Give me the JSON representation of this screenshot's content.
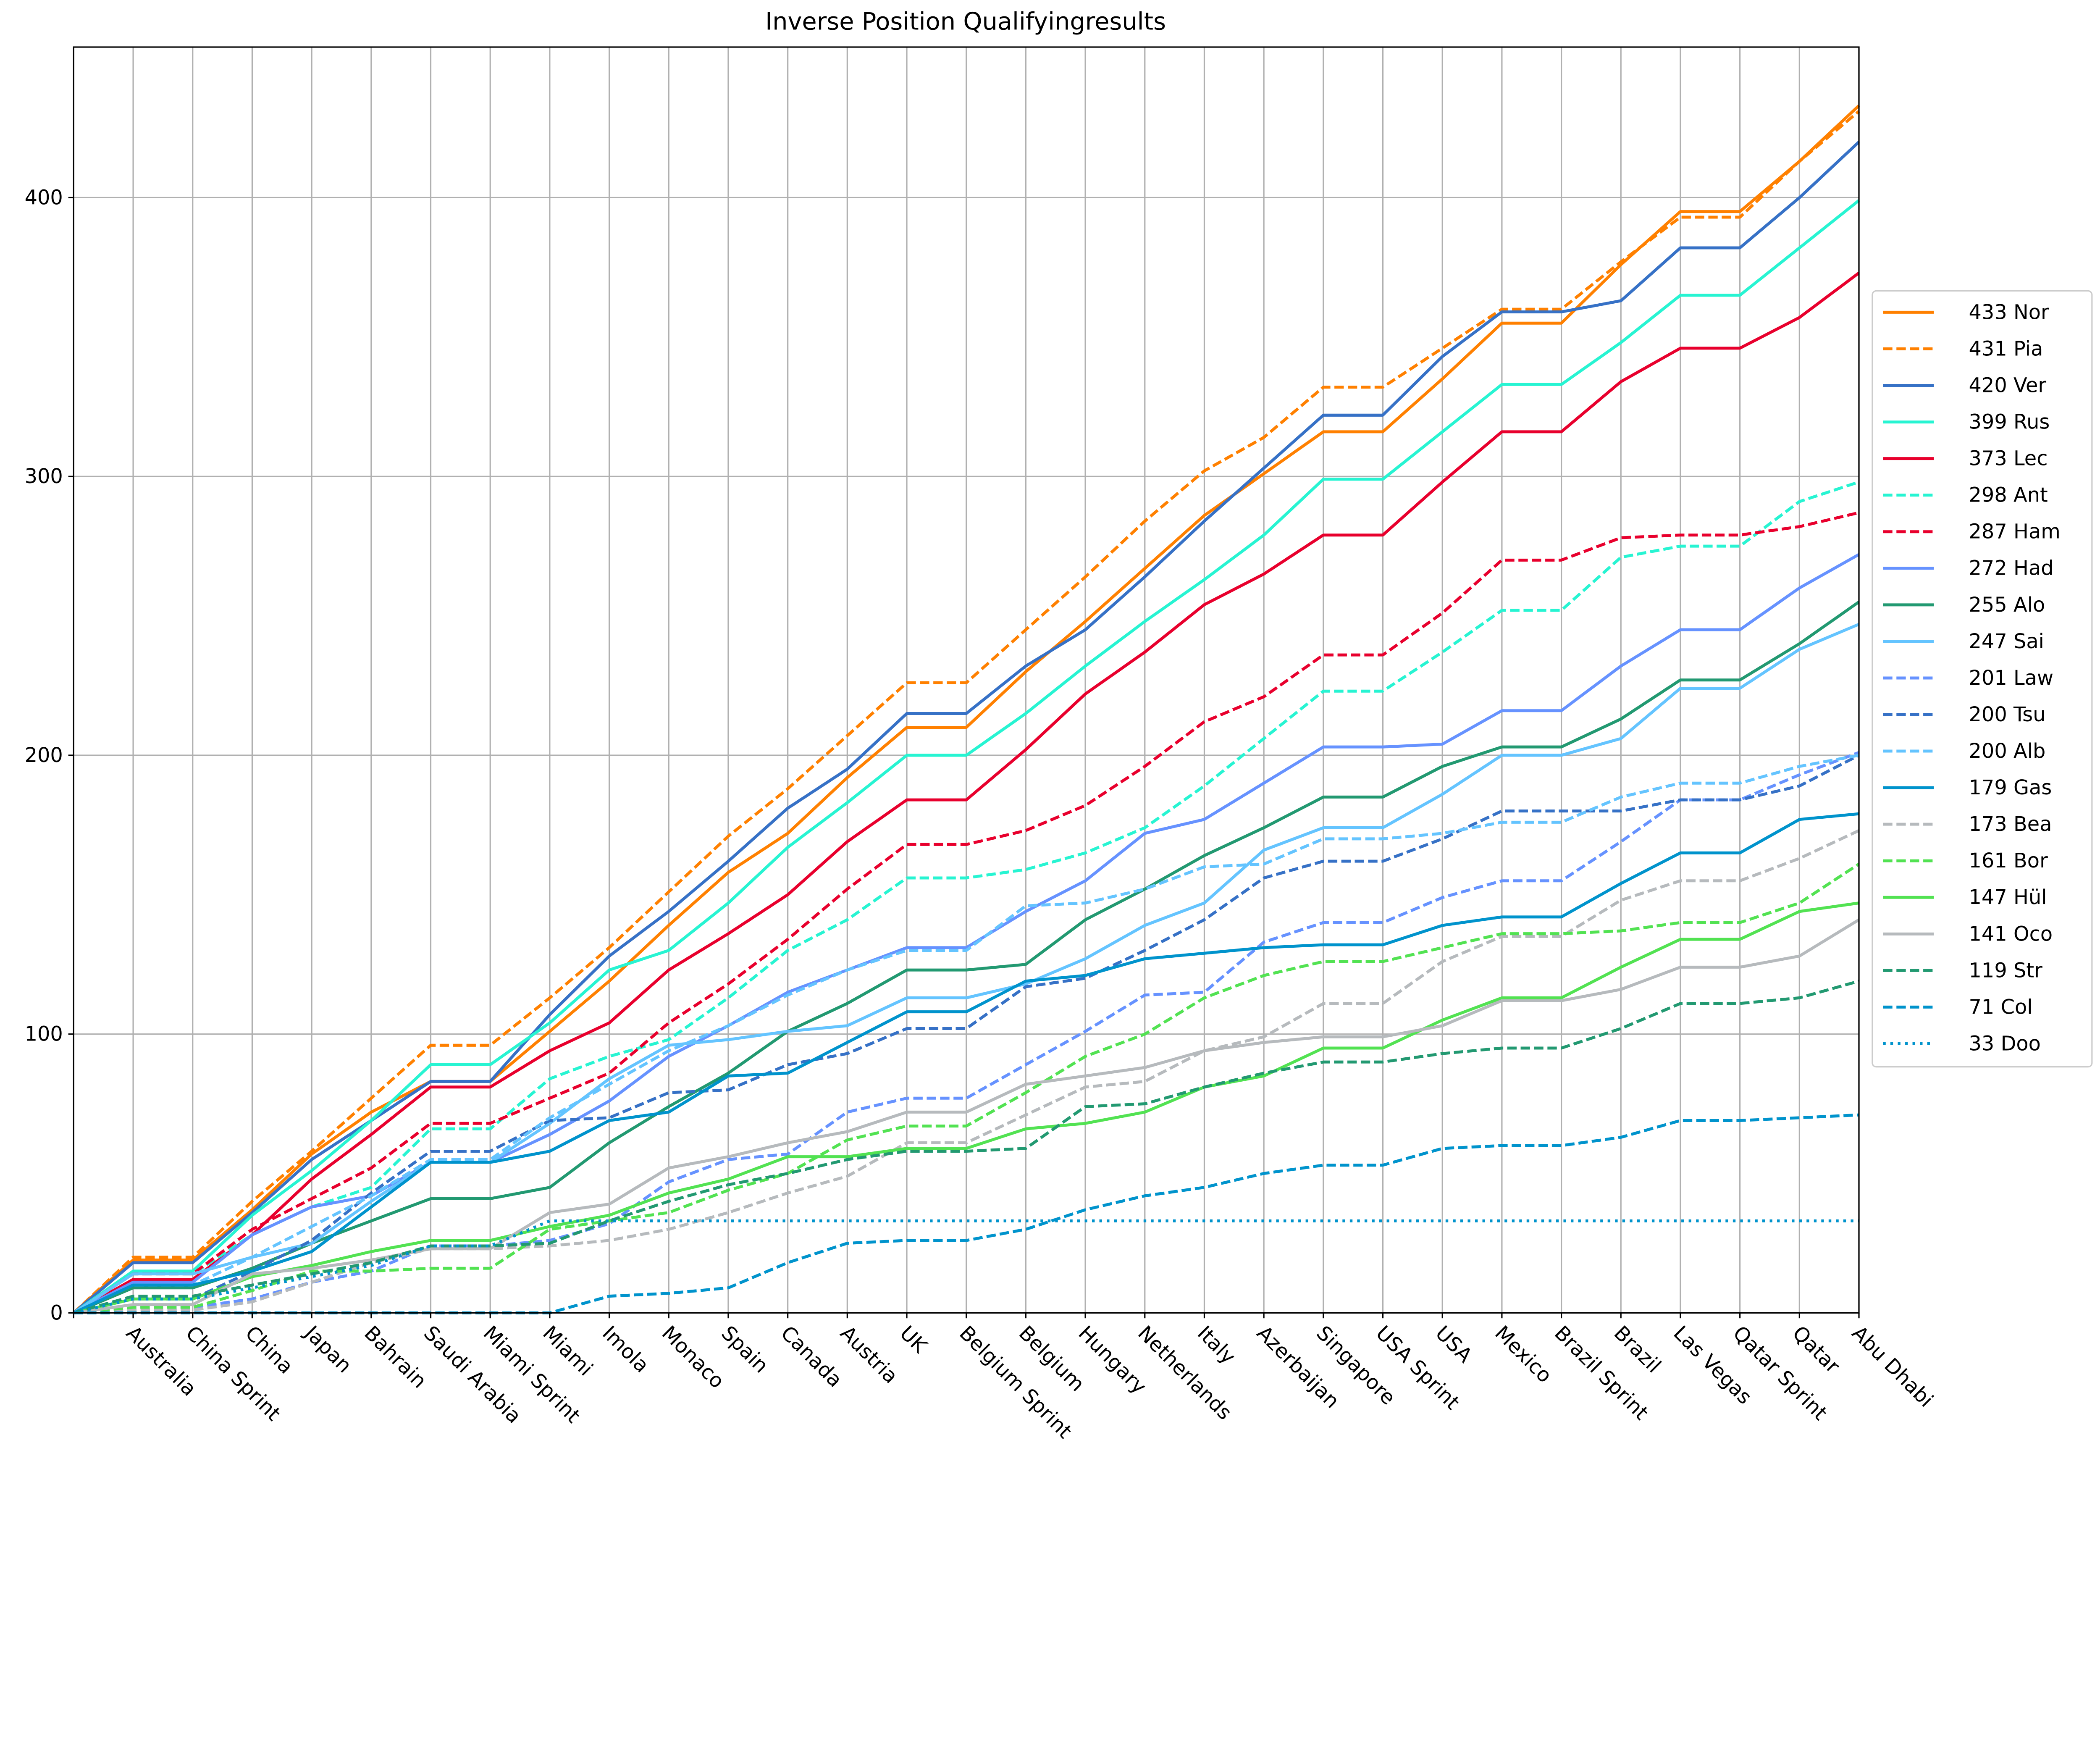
{
  "chart_data": {
    "type": "line",
    "title": "Inverse Position Qualifyingresults",
    "xlabel": "",
    "ylabel": "",
    "ylim": [
      0,
      454
    ],
    "yticks": [
      0,
      100,
      200,
      300,
      400
    ],
    "grid": true,
    "legend_position": "right",
    "categories": [
      "",
      "Australia",
      "China Sprint",
      "China",
      "Japan",
      "Bahrain",
      "Saudi Arabia",
      "Miami Sprint",
      "Miami",
      "Imola",
      "Monaco",
      "Spain",
      "Canada",
      "Austria",
      "UK",
      "Belgium Sprint",
      "Belgium",
      "Hungary",
      "Netherlands",
      "Italy",
      "Azerbaijan",
      "Singapore",
      "USA Sprint",
      "USA",
      "Mexico",
      "Brazil Sprint",
      "Brazil",
      "Las Vegas",
      "Qatar Sprint",
      "Qatar",
      "Abu Dhabi"
    ],
    "series": [
      {
        "name": "Nor",
        "label": "433 Nor",
        "color": "#ff8000",
        "style": "solid",
        "values": [
          0,
          19,
          19,
          37,
          57,
          72,
          83,
          83,
          101,
          119,
          139,
          158,
          172,
          192,
          210,
          210,
          230,
          248,
          267,
          286,
          301,
          316,
          316,
          335,
          355,
          355,
          376,
          395,
          395,
          413,
          433
        ]
      },
      {
        "name": "Pia",
        "label": "431 Pia",
        "color": "#ff8000",
        "style": "dashed",
        "values": [
          0,
          20,
          20,
          40,
          58,
          77,
          96,
          96,
          113,
          131,
          151,
          171,
          188,
          207,
          226,
          226,
          245,
          264,
          284,
          302,
          314,
          332,
          332,
          346,
          360,
          360,
          377,
          393,
          393,
          413,
          431
        ]
      },
      {
        "name": "Ver",
        "label": "420 Ver",
        "color": "#3671c6",
        "style": "solid",
        "values": [
          0,
          18,
          18,
          36,
          55,
          69,
          83,
          83,
          107,
          128,
          144,
          162,
          181,
          195,
          215,
          215,
          232,
          245,
          264,
          284,
          303,
          322,
          322,
          343,
          359,
          359,
          363,
          382,
          382,
          400,
          420
        ]
      },
      {
        "name": "Rus",
        "label": "399 Rus",
        "color": "#27f4d2",
        "style": "solid",
        "values": [
          0,
          15,
          15,
          35,
          51,
          69,
          89,
          89,
          104,
          123,
          130,
          147,
          167,
          183,
          200,
          200,
          215,
          232,
          248,
          263,
          279,
          299,
          299,
          316,
          333,
          333,
          348,
          365,
          365,
          382,
          399
        ]
      },
      {
        "name": "Lec",
        "label": "373 Lec",
        "color": "#e8002d",
        "style": "solid",
        "values": [
          0,
          12,
          12,
          28,
          48,
          64,
          81,
          81,
          94,
          104,
          123,
          136,
          150,
          169,
          184,
          184,
          202,
          222,
          237,
          254,
          265,
          279,
          279,
          298,
          316,
          316,
          334,
          346,
          346,
          357,
          373
        ]
      },
      {
        "name": "Ant",
        "label": "298 Ant",
        "color": "#27f4d2",
        "style": "dashed",
        "values": [
          0,
          14,
          14,
          28,
          38,
          45,
          66,
          66,
          84,
          92,
          98,
          113,
          130,
          141,
          156,
          156,
          159,
          165,
          174,
          189,
          206,
          223,
          223,
          237,
          252,
          252,
          271,
          275,
          275,
          291,
          298
        ]
      },
      {
        "name": "Ham",
        "label": "287 Ham",
        "color": "#e8002d",
        "style": "dashed",
        "values": [
          0,
          14,
          14,
          30,
          41,
          52,
          68,
          68,
          77,
          86,
          104,
          118,
          134,
          152,
          168,
          168,
          173,
          182,
          196,
          212,
          221,
          236,
          236,
          251,
          270,
          270,
          278,
          279,
          279,
          282,
          287
        ]
      },
      {
        "name": "Had",
        "label": "272 Had",
        "color": "#6692ff",
        "style": "solid",
        "values": [
          0,
          11,
          11,
          28,
          38,
          42,
          54,
          54,
          64,
          76,
          92,
          103,
          115,
          123,
          131,
          131,
          144,
          155,
          172,
          177,
          190,
          203,
          203,
          204,
          216,
          216,
          232,
          245,
          245,
          260,
          272
        ]
      },
      {
        "name": "Alo",
        "label": "255 Alo",
        "color": "#229971",
        "style": "solid",
        "values": [
          0,
          9,
          9,
          16,
          25,
          33,
          41,
          41,
          45,
          61,
          74,
          86,
          101,
          111,
          123,
          123,
          125,
          141,
          152,
          164,
          174,
          185,
          185,
          196,
          203,
          203,
          213,
          227,
          227,
          240,
          255
        ]
      },
      {
        "name": "Sai",
        "label": "247 Sai",
        "color": "#64c4ff",
        "style": "solid",
        "values": [
          0,
          14,
          14,
          20,
          25,
          40,
          54,
          54,
          68,
          84,
          96,
          98,
          101,
          103,
          113,
          113,
          118,
          127,
          139,
          147,
          166,
          174,
          174,
          186,
          200,
          200,
          206,
          224,
          224,
          238,
          247
        ]
      },
      {
        "name": "Law",
        "label": "201 Law",
        "color": "#6692ff",
        "style": "dashed",
        "values": [
          0,
          2,
          2,
          5,
          11,
          15,
          24,
          24,
          26,
          32,
          47,
          55,
          57,
          72,
          77,
          77,
          89,
          101,
          114,
          115,
          133,
          140,
          140,
          149,
          155,
          155,
          169,
          184,
          184,
          193,
          201
        ]
      },
      {
        "name": "Tsu",
        "label": "200 Tsu",
        "color": "#3671c6",
        "style": "dashed",
        "values": [
          0,
          5,
          5,
          15,
          26,
          43,
          58,
          58,
          69,
          70,
          79,
          80,
          89,
          93,
          102,
          102,
          117,
          120,
          130,
          141,
          156,
          162,
          162,
          170,
          180,
          180,
          180,
          184,
          184,
          189,
          200
        ]
      },
      {
        "name": "Alb",
        "label": "200 Alb",
        "color": "#64c4ff",
        "style": "dashed",
        "values": [
          0,
          10,
          10,
          20,
          31,
          42,
          55,
          55,
          70,
          82,
          94,
          103,
          114,
          123,
          130,
          130,
          146,
          147,
          152,
          160,
          161,
          170,
          170,
          172,
          176,
          176,
          185,
          190,
          190,
          196,
          200
        ]
      },
      {
        "name": "Gas",
        "label": "179 Gas",
        "color": "#0093cc",
        "style": "solid",
        "values": [
          0,
          10,
          10,
          15,
          22,
          38,
          54,
          54,
          58,
          69,
          72,
          85,
          86,
          97,
          108,
          108,
          119,
          121,
          127,
          129,
          131,
          132,
          132,
          139,
          142,
          142,
          154,
          165,
          165,
          177,
          179
        ]
      },
      {
        "name": "Bea",
        "label": "173 Bea",
        "color": "#b6babd",
        "style": "dashed",
        "values": [
          0,
          1,
          1,
          4,
          11,
          18,
          23,
          23,
          24,
          26,
          30,
          36,
          43,
          49,
          61,
          61,
          71,
          81,
          83,
          94,
          99,
          111,
          111,
          126,
          135,
          135,
          148,
          155,
          155,
          163,
          173
        ]
      },
      {
        "name": "Bor",
        "label": "161 Bor",
        "color": "#52e252",
        "style": "dashed",
        "values": [
          0,
          2,
          2,
          8,
          15,
          15,
          16,
          16,
          30,
          33,
          36,
          44,
          50,
          62,
          67,
          67,
          79,
          92,
          100,
          113,
          121,
          126,
          126,
          131,
          136,
          136,
          137,
          140,
          140,
          147,
          161
        ]
      },
      {
        "name": "Hül",
        "label": "147 Hül",
        "color": "#52e252",
        "style": "solid",
        "values": [
          0,
          5,
          5,
          13,
          17,
          22,
          26,
          26,
          31,
          35,
          43,
          48,
          56,
          56,
          59,
          59,
          66,
          68,
          72,
          81,
          85,
          95,
          95,
          105,
          113,
          113,
          124,
          134,
          134,
          144,
          147
        ]
      },
      {
        "name": "Oco",
        "label": "141 Oco",
        "color": "#b6babd",
        "style": "solid",
        "values": [
          0,
          3,
          3,
          14,
          16,
          19,
          23,
          23,
          36,
          39,
          52,
          56,
          61,
          65,
          72,
          72,
          82,
          85,
          88,
          94,
          97,
          99,
          99,
          103,
          112,
          112,
          116,
          124,
          124,
          128,
          141
        ]
      },
      {
        "name": "Str",
        "label": "119 Str",
        "color": "#229971",
        "style": "dashed",
        "values": [
          0,
          6,
          6,
          10,
          14,
          18,
          24,
          24,
          25,
          33,
          40,
          46,
          50,
          55,
          58,
          58,
          59,
          74,
          75,
          81,
          86,
          90,
          90,
          93,
          95,
          95,
          102,
          111,
          111,
          113,
          119
        ]
      },
      {
        "name": "Col",
        "label": " 71 Col",
        "color": "#0093cc",
        "style": "dashed",
        "values": [
          0,
          0,
          0,
          0,
          0,
          0,
          0,
          0,
          0,
          6,
          7,
          9,
          18,
          25,
          26,
          26,
          30,
          37,
          42,
          45,
          50,
          53,
          53,
          59,
          60,
          60,
          63,
          69,
          69,
          70,
          71
        ]
      },
      {
        "name": "Doo",
        "label": " 33 Doo",
        "color": "#0093cc",
        "style": "dotted",
        "values": [
          0,
          5,
          5,
          9,
          13,
          17,
          24,
          24,
          33,
          33,
          33,
          33,
          33,
          33,
          33,
          33,
          33,
          33,
          33,
          33,
          33,
          33,
          33,
          33,
          33,
          33,
          33,
          33,
          33,
          33,
          33
        ]
      }
    ]
  }
}
